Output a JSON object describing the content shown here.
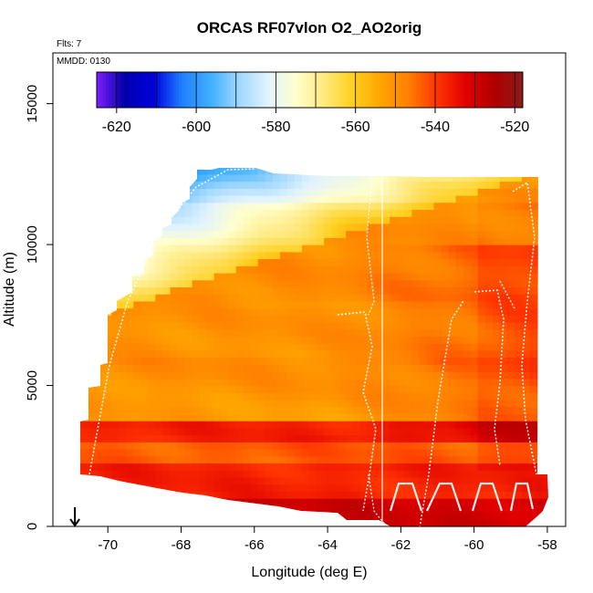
{
  "chart_data": {
    "type": "heatmap",
    "title": "ORCAS RF07vlon O2_AO2orig",
    "note_flights": "Flts: 7",
    "note_date": "MMDD: 0130",
    "xlabel": "Longitude (deg E)",
    "ylabel": "Altitude (m)",
    "xlim": [
      -71.5,
      -57.5
    ],
    "ylim": [
      0,
      16800
    ],
    "x_ticks": [
      -70,
      -68,
      -66,
      -64,
      -62,
      -60,
      -58
    ],
    "x_tick_labels": [
      "-70",
      "-68",
      "-66",
      "-64",
      "-62",
      "-60",
      "-58"
    ],
    "y_ticks": [
      0,
      5000,
      10000,
      15000
    ],
    "y_tick_labels": [
      "0",
      "5000",
      "10000",
      "15000"
    ],
    "colorbar": {
      "range": [
        -625,
        -518
      ],
      "ticks": [
        -620,
        -600,
        -580,
        -560,
        -540,
        -520
      ],
      "tick_labels": [
        "-620",
        "-600",
        "-580",
        "-560",
        "-540",
        "-520"
      ],
      "colors": [
        "#7f1fff",
        "#0000aa",
        "#0000dd",
        "#1f7fff",
        "#3fafff",
        "#9fd7ff",
        "#dff2ff",
        "#ffffcf",
        "#ffe97f",
        "#ffd020",
        "#ffa500",
        "#ff7f00",
        "#ff3300",
        "#e00000",
        "#b00000",
        "#8b1a1a"
      ]
    },
    "marker_longitude": -70.9,
    "grid": false,
    "legend": "colorbar top"
  }
}
